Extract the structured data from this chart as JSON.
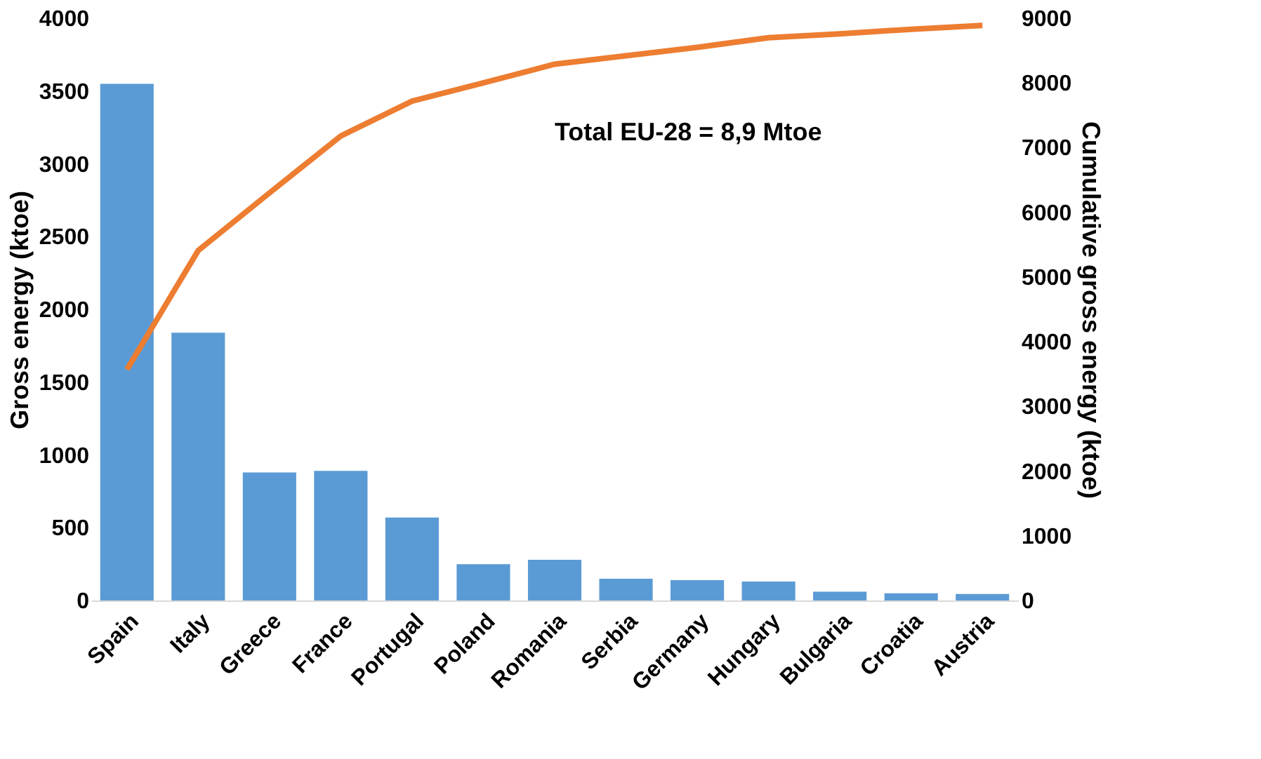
{
  "chart_data": {
    "type": "bar",
    "categories": [
      "Spain",
      "Italy",
      "Greece",
      "France",
      "Portugal",
      "Poland",
      "Romania",
      "Serbia",
      "Germany",
      "Hungary",
      "Bulgaria",
      "Croatia",
      "Austria"
    ],
    "ylabel": "Gross energy (ktoe)",
    "y2label": "Cumulative gross energy (ktoe)",
    "series": [
      {
        "color": "#5b9bd5",
        "values": [
          3550,
          1840,
          880,
          890,
          570,
          250,
          280,
          150,
          140,
          130,
          60,
          50,
          45
        ]
      },
      {
        "type": "line",
        "axis": "y2",
        "color": "#ed7d31",
        "values": [
          3570,
          5410,
          6300,
          7180,
          7720,
          8000,
          8290,
          8420,
          8550,
          8700,
          8760,
          8830,
          8890
        ]
      }
    ],
    "ylim": [
      0,
      4000
    ],
    "yticks": [
      0,
      500,
      1000,
      1500,
      2000,
      2500,
      3000,
      3500,
      4000
    ],
    "y2lim": [
      0,
      9000
    ],
    "y2ticks": [
      0,
      1000,
      2000,
      3000,
      4000,
      5000,
      6000,
      7000,
      8000,
      9000
    ],
    "annotations": [
      "Total EU-28 = 8,9 Mtoe"
    ],
    "grid": false
  }
}
